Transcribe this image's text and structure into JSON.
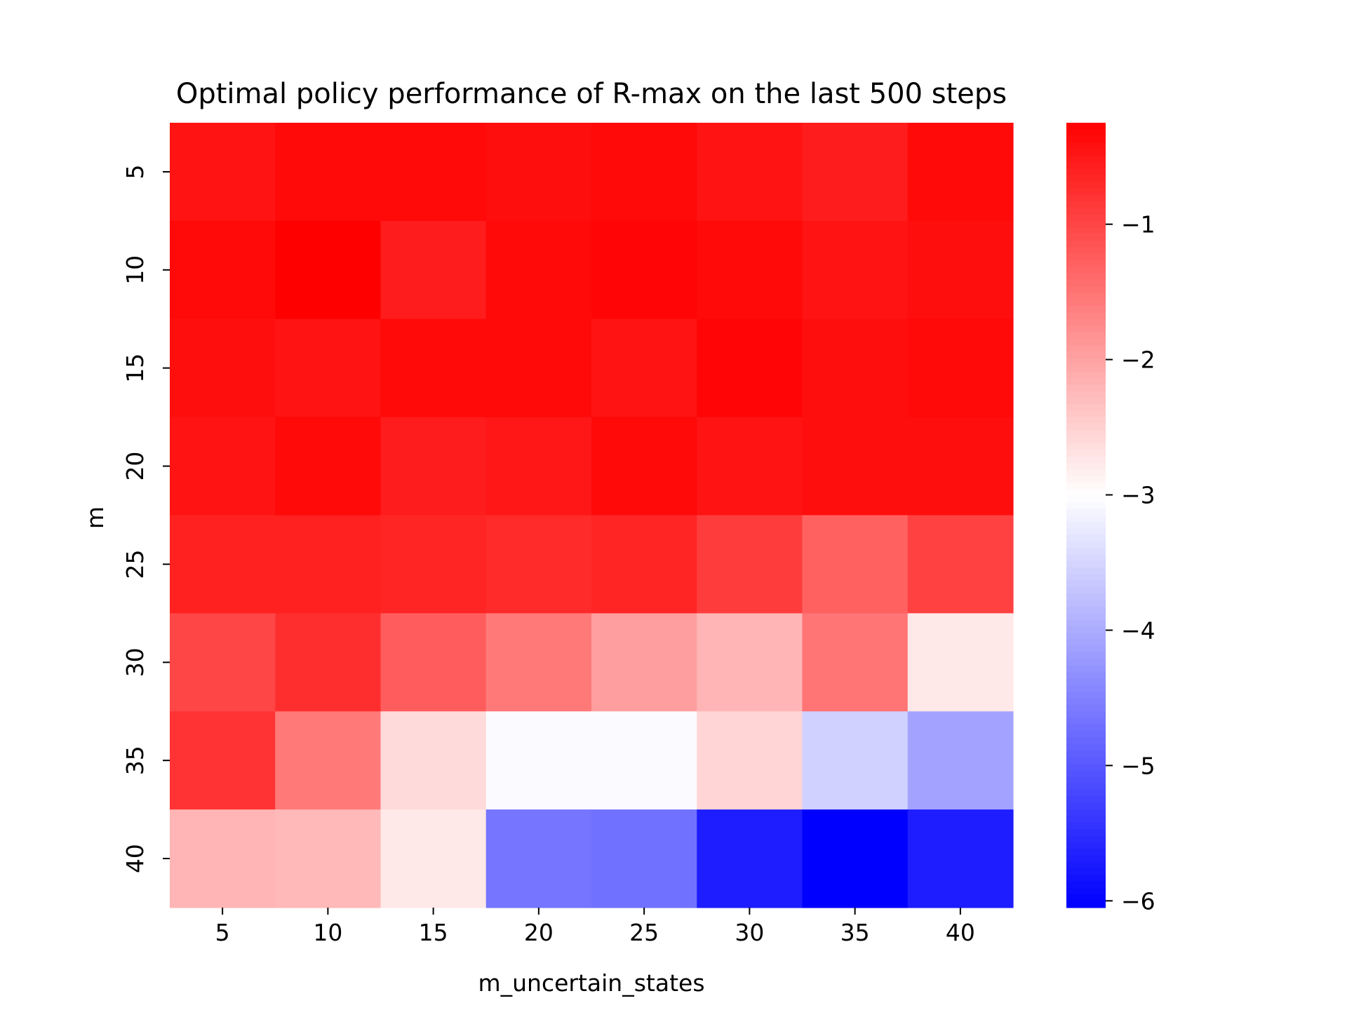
{
  "chart_data": {
    "type": "heatmap",
    "title": "Optimal policy performance of R-max on the last 500 steps",
    "xlabel": "m_uncertain_states",
    "ylabel": "m",
    "x_categories": [
      "5",
      "10",
      "15",
      "20",
      "25",
      "30",
      "35",
      "40"
    ],
    "y_categories": [
      "5",
      "10",
      "15",
      "20",
      "25",
      "30",
      "35",
      "40"
    ],
    "values": [
      [
        -0.45,
        -0.35,
        -0.35,
        -0.4,
        -0.35,
        -0.45,
        -0.55,
        -0.35
      ],
      [
        -0.35,
        -0.25,
        -0.55,
        -0.35,
        -0.3,
        -0.35,
        -0.45,
        -0.4
      ],
      [
        -0.4,
        -0.45,
        -0.35,
        -0.35,
        -0.45,
        -0.3,
        -0.4,
        -0.35
      ],
      [
        -0.45,
        -0.35,
        -0.55,
        -0.5,
        -0.35,
        -0.45,
        -0.4,
        -0.4
      ],
      [
        -0.6,
        -0.6,
        -0.65,
        -0.7,
        -0.65,
        -0.9,
        -1.3,
        -0.95
      ],
      [
        -1.0,
        -0.75,
        -1.25,
        -1.55,
        -1.95,
        -2.2,
        -1.5,
        -2.75
      ],
      [
        -0.8,
        -1.55,
        -2.6,
        -3.05,
        -3.05,
        -2.55,
        -3.55,
        -4.1
      ],
      [
        -2.2,
        -2.25,
        -2.75,
        -4.65,
        -4.7,
        -5.7,
        -6.05,
        -5.7
      ]
    ],
    "colorbar": {
      "ticks": [
        -1,
        -2,
        -3,
        -4,
        -5,
        -6
      ],
      "tick_labels": [
        "−1",
        "−2",
        "−3",
        "−4",
        "−5",
        "−6"
      ],
      "vmin": -6.05,
      "vmax": -0.25,
      "center": -3.0,
      "colormap": "bwr",
      "low_color": "#0000ff",
      "mid_color": "#ffffff",
      "high_color": "#ff0000"
    }
  }
}
